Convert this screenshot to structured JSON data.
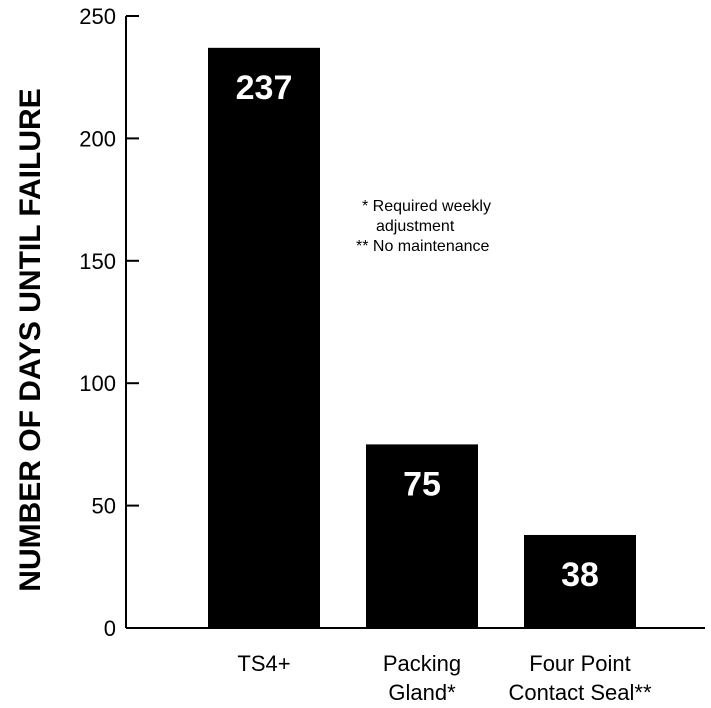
{
  "chart_data": {
    "type": "bar",
    "categories": [
      [
        "TS4+"
      ],
      [
        "Packing",
        "Gland*"
      ],
      [
        "Four Point",
        "Contact Seal**"
      ]
    ],
    "values": [
      237,
      75,
      38
    ],
    "data_labels": [
      "237",
      "75",
      "38"
    ],
    "title": "",
    "xlabel": "",
    "ylabel": "NUMBER OF DAYS UNTIL FAILURE",
    "ylim": [
      0,
      250
    ],
    "yticks": [
      0,
      50,
      100,
      150,
      200,
      250
    ],
    "grid": false,
    "bar_color": "#000000",
    "value_label_color": "#ffffff"
  },
  "notes": [
    "* Required weekly",
    "adjustment",
    "** No maintenance"
  ]
}
